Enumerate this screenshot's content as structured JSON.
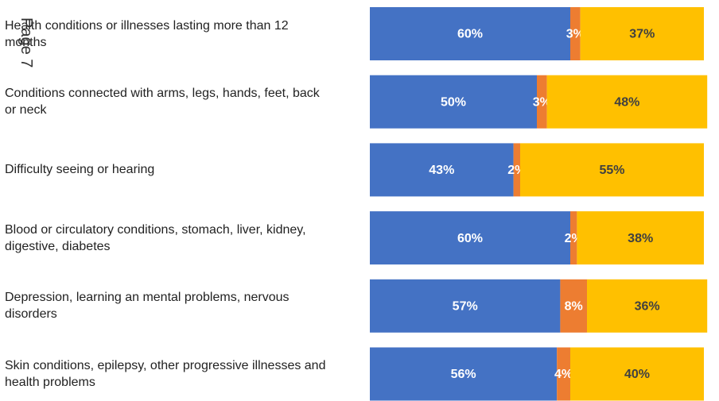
{
  "chart_data": {
    "type": "stacked_barh",
    "annotation": "Page 7",
    "categories": [
      "Health conditions or illnesses lasting more than 12 months",
      "Conditions connected with arms, legs, hands, feet, back or neck",
      "Difficulty seeing or hearing",
      "Blood or circulatory conditions, stomach, liver, kidney, digestive, diabetes",
      "Depression, learning an mental problems, nervous disorders",
      "Skin conditions, epilepsy, other progressive illnesses and health problems"
    ],
    "series": [
      {
        "color": "#4472c4",
        "label_color": "#ffffff",
        "values": [
          60,
          50,
          43,
          60,
          57,
          56
        ],
        "value_labels": [
          "60%",
          "50%",
          "43%",
          "60%",
          "57%",
          "56%"
        ]
      },
      {
        "color": "#ed7d31",
        "label_color": "#ffffff",
        "values": [
          3,
          3,
          2,
          2,
          8,
          4
        ],
        "value_labels": [
          "3%",
          "3%",
          "2%",
          "2%",
          "8%",
          "4%"
        ]
      },
      {
        "color": "#ffc000",
        "label_color": "#404040",
        "values": [
          37,
          48,
          55,
          38,
          36,
          40
        ],
        "value_labels": [
          "37%",
          "48%",
          "55%",
          "38%",
          "36%",
          "40%"
        ]
      }
    ],
    "xlim": [
      0,
      100
    ]
  }
}
